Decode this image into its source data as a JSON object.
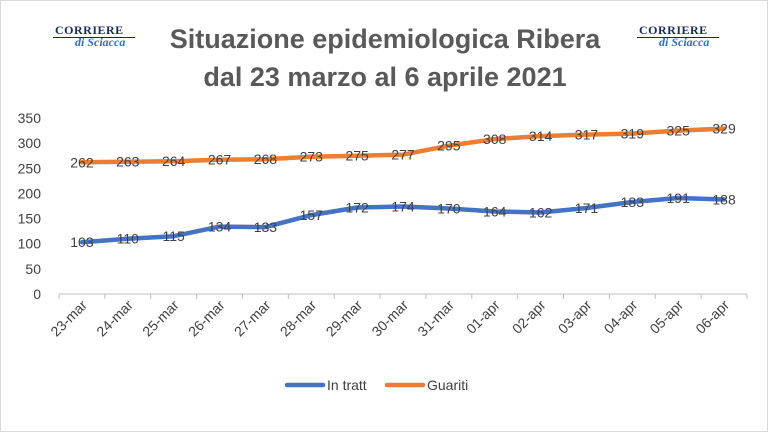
{
  "logos": {
    "line1": "CORRIERE",
    "line2": "di Sciacca"
  },
  "chart_data": {
    "type": "line",
    "title_line1": "Situazione epidemiologica Ribera",
    "title_line2": "dal 23 marzo al 6 aprile 2021",
    "categories": [
      "23-mar",
      "24-mar",
      "25-mar",
      "26-mar",
      "27-mar",
      "28-mar",
      "29-mar",
      "30-mar",
      "31-mar",
      "01-apr",
      "02-apr",
      "03-apr",
      "04-apr",
      "05-apr",
      "06-apr"
    ],
    "series": [
      {
        "name": "In tratt",
        "color": "#4472c4",
        "values": [
          103,
          110,
          115,
          134,
          133,
          157,
          172,
          174,
          170,
          164,
          162,
          171,
          183,
          191,
          188
        ]
      },
      {
        "name": "Guariti",
        "color": "#ed7d31",
        "values": [
          262,
          263,
          264,
          267,
          268,
          273,
          275,
          277,
          295,
          308,
          314,
          317,
          319,
          325,
          329
        ]
      }
    ],
    "ylim": [
      0,
      350
    ],
    "yticks": [
      0,
      50,
      100,
      150,
      200,
      250,
      300,
      350
    ],
    "grid": false,
    "legend": "bottom"
  }
}
